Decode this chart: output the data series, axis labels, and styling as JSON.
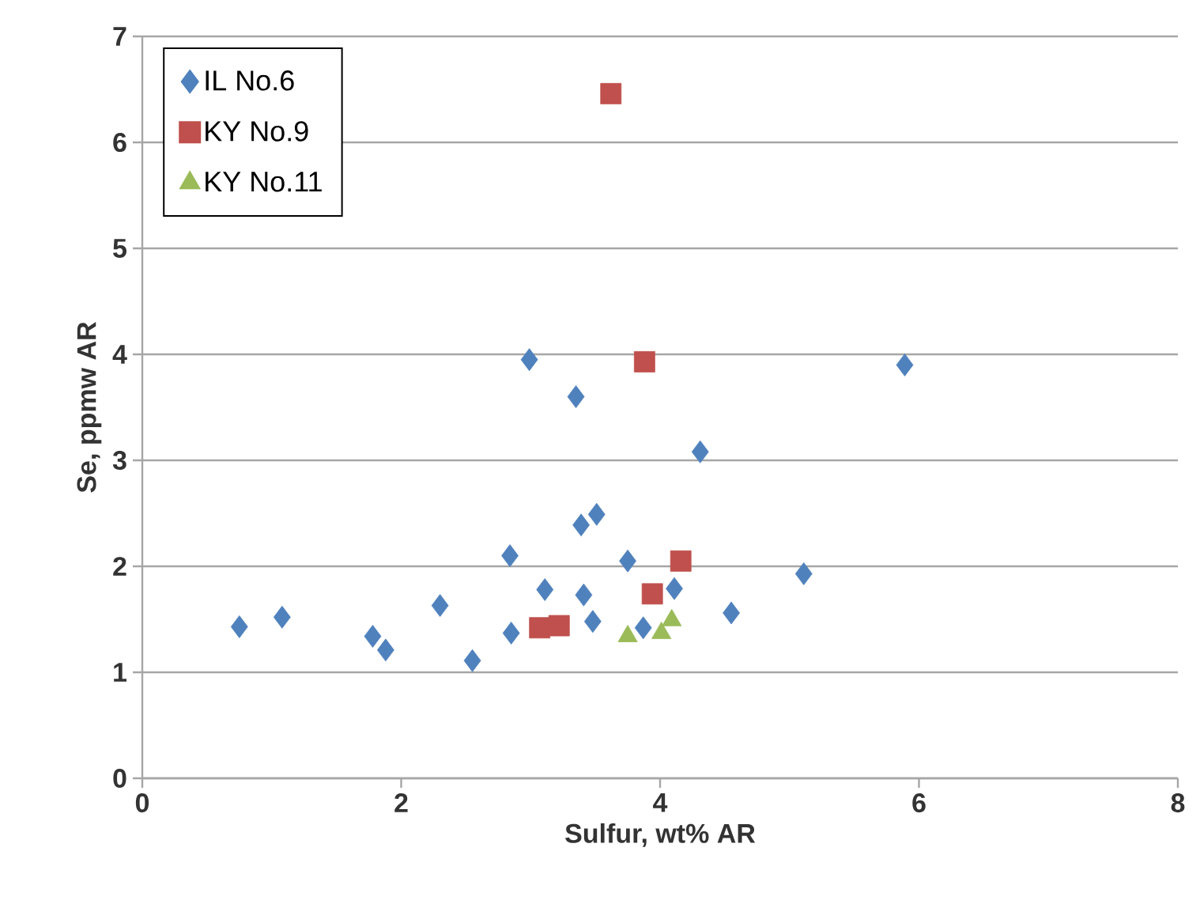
{
  "chart_data": {
    "type": "scatter",
    "xlabel": "Sulfur, wt% AR",
    "ylabel": "Se, ppmw AR",
    "xlim": [
      0,
      8
    ],
    "ylim": [
      0,
      7
    ],
    "xticks": [
      0,
      2,
      4,
      6,
      8
    ],
    "yticks": [
      0,
      1,
      2,
      3,
      4,
      5,
      6,
      7
    ],
    "grid": "y",
    "legend": "top left",
    "series": [
      {
        "name": "IL No.6",
        "color": "#4f81bd",
        "marker": "diamond",
        "x": [
          0.75,
          1.08,
          1.78,
          1.88,
          2.3,
          2.55,
          2.85,
          2.84,
          3.11,
          3.41,
          3.48,
          3.39,
          3.51,
          3.75,
          3.87,
          4.11,
          4.55,
          5.11,
          2.99,
          3.35,
          4.31,
          5.89
        ],
        "values": [
          1.43,
          1.52,
          1.34,
          1.21,
          1.63,
          1.11,
          1.37,
          2.1,
          1.78,
          1.73,
          1.48,
          2.39,
          2.49,
          2.05,
          1.42,
          1.79,
          1.56,
          1.93,
          3.95,
          3.6,
          3.08,
          3.9
        ]
      },
      {
        "name": "KY No.9",
        "color": "#c0504d",
        "marker": "square",
        "x": [
          3.62,
          3.88,
          4.16,
          3.94,
          3.07,
          3.22
        ],
        "values": [
          6.46,
          3.93,
          2.05,
          1.74,
          1.42,
          1.44
        ]
      },
      {
        "name": "KY No.11",
        "color": "#9bbb59",
        "marker": "triangle",
        "x": [
          3.75,
          4.01,
          4.09
        ],
        "values": [
          1.34,
          1.37,
          1.49
        ]
      }
    ]
  }
}
